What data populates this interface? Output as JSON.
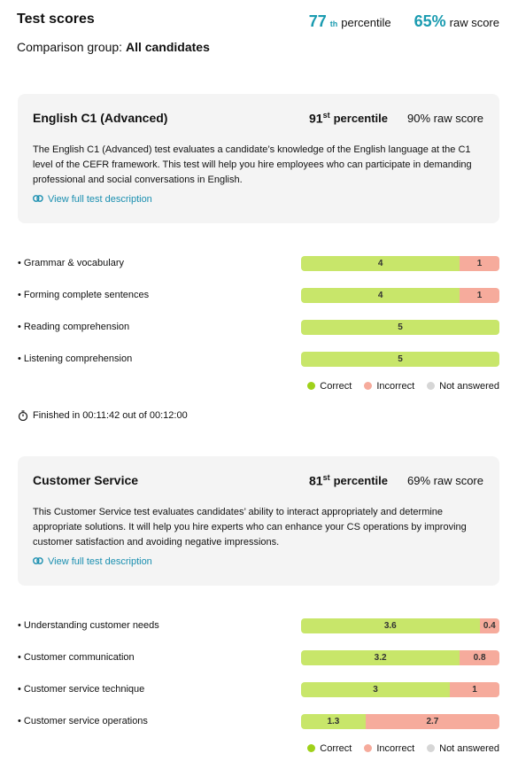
{
  "header": {
    "title": "Test scores",
    "percentile_num": "77",
    "percentile_sup": "th",
    "percentile_label": "percentile",
    "raw_score": "65%",
    "raw_label": "raw score",
    "group_label": "Comparison group:",
    "group": "All candidates"
  },
  "tests": [
    {
      "name": "English C1 (Advanced)",
      "percentile_num": "91",
      "percentile_sup": "st",
      "percentile_label": "percentile",
      "raw_score": "90% raw score",
      "description": "The English C1 (Advanced) test evaluates a candidate’s knowledge of the English language at the C1 level of the CEFR framework. This test will help you hire employees who can participate in demanding professional and social conversations in English.",
      "link": "View full test description",
      "skills": [
        {
          "name": "Grammar & vocabulary",
          "correct": 4,
          "incorrect": 1
        },
        {
          "name": "Forming complete sentences",
          "correct": 4,
          "incorrect": 1
        },
        {
          "name": "Reading comprehension",
          "correct": 5
        },
        {
          "name": "Listening comprehension",
          "correct": 5
        }
      ],
      "legend": [
        "Correct",
        "Incorrect",
        "Not answered"
      ],
      "finished": "Finished in 00:11:42 out of 00:12:00"
    },
    {
      "name": "Customer Service",
      "percentile_num": "81",
      "percentile_sup": "st",
      "percentile_label": "percentile",
      "raw_score": "69% raw score",
      "description": "This Customer Service test evaluates candidates’ ability to interact appropriately and determine appropriate solutions. It will help you hire experts who can enhance your CS operations by improving customer satisfaction and avoiding negative impressions.",
      "link": "View full test description",
      "skills": [
        {
          "name": "Understanding customer needs",
          "correct": 3.6,
          "incorrect": 0.4
        },
        {
          "name": "Customer communication",
          "correct": 3.2,
          "incorrect": 0.8
        },
        {
          "name": "Customer service technique",
          "correct": 3,
          "incorrect": 1
        },
        {
          "name": "Customer service operations",
          "correct": 1.3,
          "incorrect": 2.7
        }
      ],
      "legend": [
        "Correct",
        "Incorrect",
        "Not answered"
      ]
    }
  ]
}
